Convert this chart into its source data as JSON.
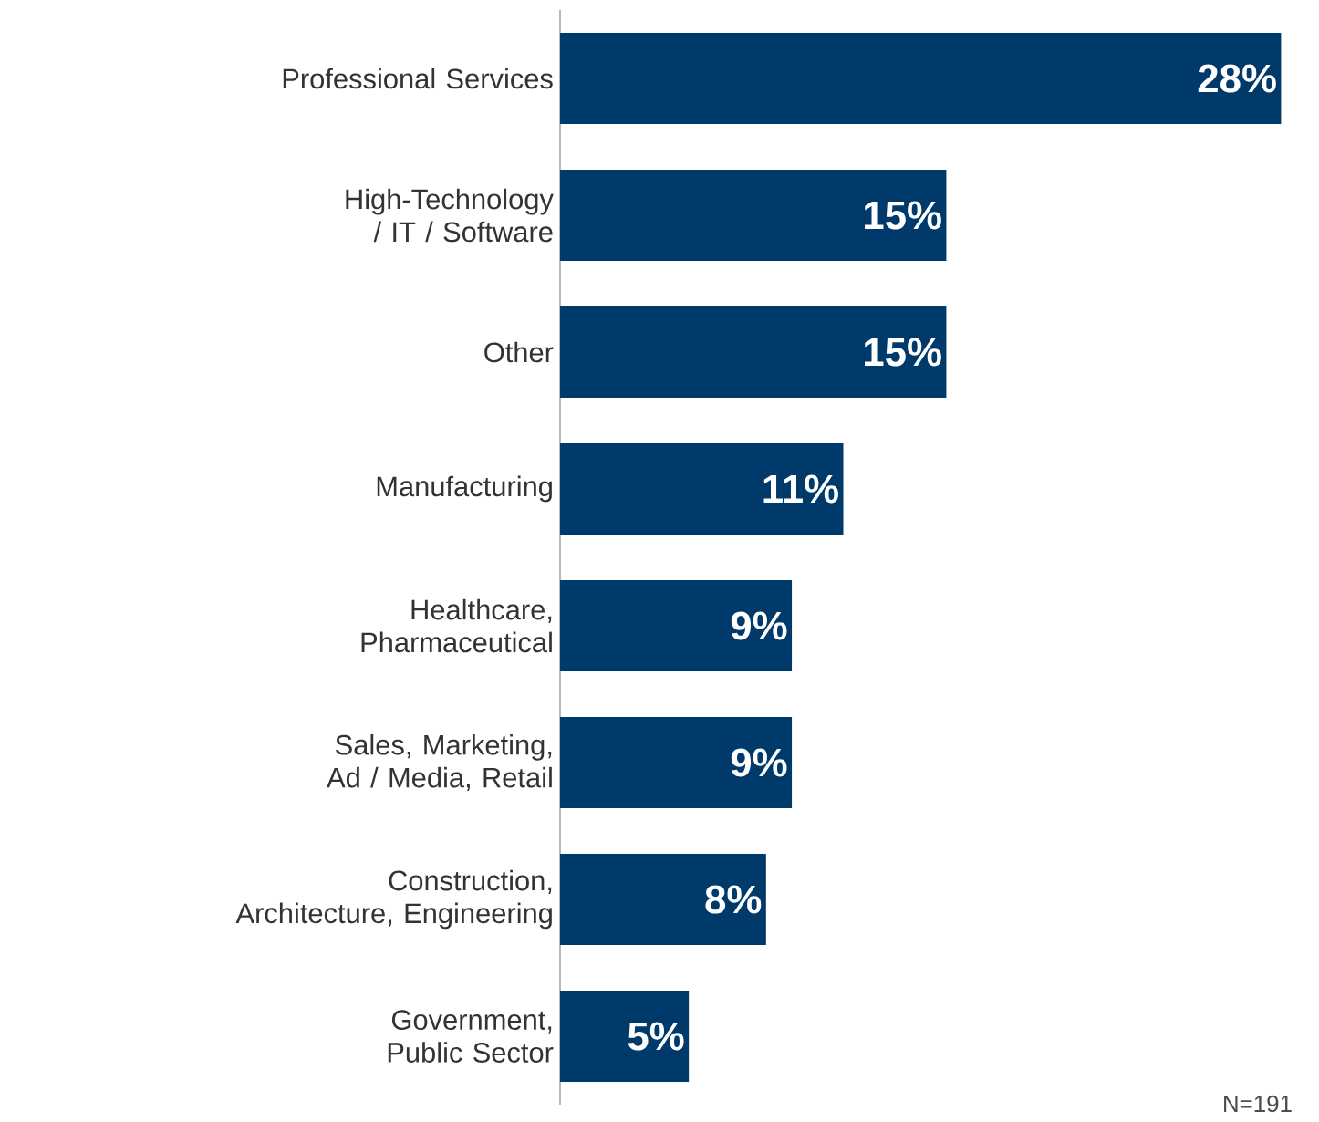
{
  "chart_data": {
    "type": "bar",
    "orientation": "horizontal",
    "categories": [
      "Professional Services",
      "High-Technology / IT / Software",
      "Other",
      "Manufacturing",
      "Healthcare, Pharmaceutical",
      "Sales, Marketing, Ad / Media, Retail",
      "Construction, Architecture, Engineering",
      "Government, Public Sector"
    ],
    "values": [
      28,
      15,
      15,
      11,
      9,
      9,
      8,
      5
    ],
    "value_labels": [
      "28%",
      "15%",
      "15%",
      "11%",
      "9%",
      "9%",
      "8%",
      "5%"
    ],
    "color": "#003a6a",
    "annotations": [
      "N=191"
    ]
  }
}
